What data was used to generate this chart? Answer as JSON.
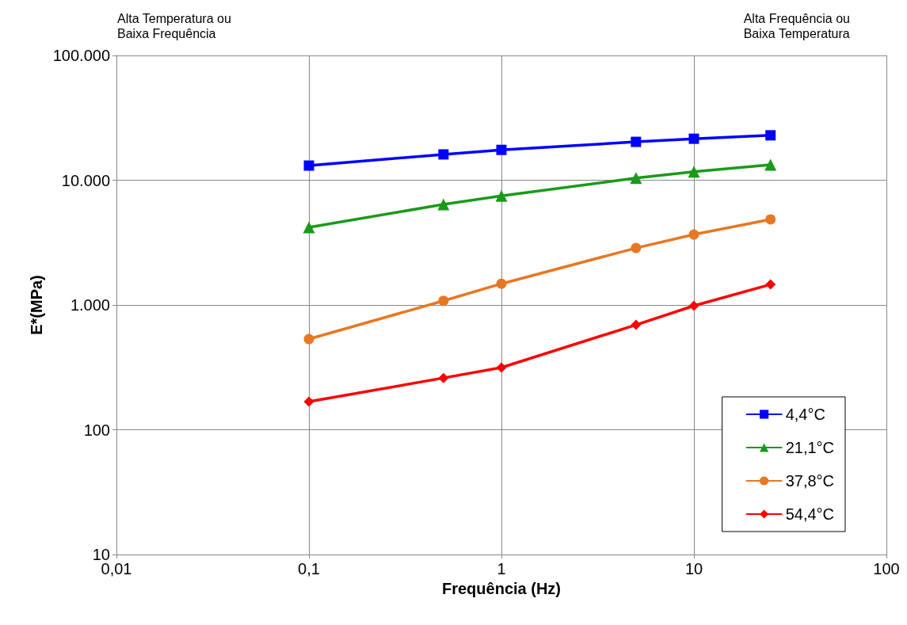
{
  "chart_data": {
    "type": "line",
    "xlabel": "Frequência (Hz)",
    "ylabel": "E*(MPa)",
    "annotations": [
      "Alta Temperatura ou\nBaixa Frequência",
      "Alta Frequência ou\nBaixa Temperatura"
    ],
    "log": "xy",
    "xlim": [
      0.01,
      100
    ],
    "ylim": [
      10,
      100000
    ],
    "xticks": [
      {
        "value": 0.01,
        "label": "0,01"
      },
      {
        "value": 0.1,
        "label": "0,1"
      },
      1,
      10,
      100
    ],
    "yticks": [
      10,
      100,
      {
        "value": 1000,
        "label": "1.000"
      },
      {
        "value": 10000,
        "label": "10.000"
      },
      {
        "value": 100000,
        "label": "100.000"
      }
    ],
    "grid": true,
    "legend": "bottom right",
    "line_style": "solid",
    "x": [
      0.1,
      0.5,
      1,
      5,
      10,
      25
    ],
    "series": [
      {
        "name": "4,4°C",
        "color": "#0000ff",
        "marker": "square",
        "values": [
          13100,
          16100,
          17500,
          20300,
          21500,
          22900
        ]
      },
      {
        "name": "21,1°C",
        "color": "#1a9a1a",
        "marker": "triangle",
        "values": [
          4190,
          6400,
          7500,
          10400,
          11700,
          13300
        ]
      },
      {
        "name": "37,8°C",
        "color": "#e87722",
        "marker": "circle",
        "values": [
          533,
          1080,
          1480,
          2860,
          3670,
          4850
        ]
      },
      {
        "name": "54,4°C",
        "color": "#ff0000",
        "marker": "diamond",
        "values": [
          168,
          260,
          315,
          693,
          986,
          1460
        ]
      }
    ]
  }
}
